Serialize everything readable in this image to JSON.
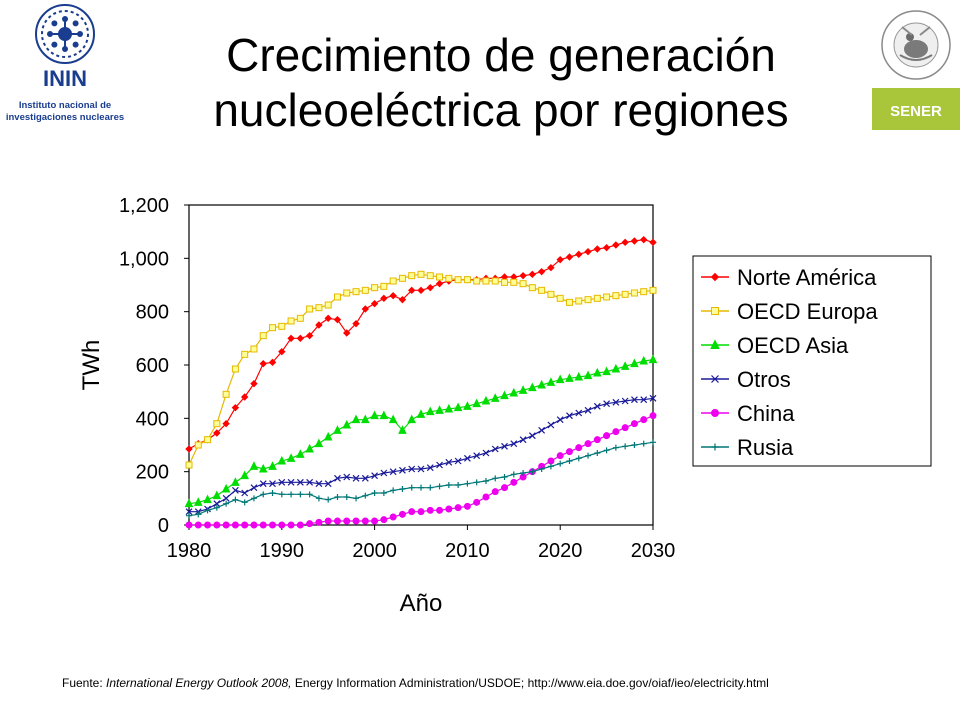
{
  "header": {
    "title_line1": "Crecimiento de generación",
    "title_line2": "nucleoeléctrica por regiones"
  },
  "logos": {
    "inin": {
      "name": "ININ",
      "subtitle_line1": "Instituto nacional de",
      "subtitle_line2": "investigaciones nucleares",
      "color": "#1a3d8f"
    },
    "sener": {
      "name": "SENER",
      "seal_text": "ESTADOS UNIDOS MEXICANOS",
      "accent_color": "#a9c63b"
    }
  },
  "footer": {
    "prefix": "Fuente: ",
    "source_title": "International Energy Outlook 2008,",
    "rest": "  Energy Information Administration/USDOE; http://www.eia.doe.gov/oiaf/ieo/electricity.html"
  },
  "chart_data": {
    "type": "line",
    "title": "",
    "xlabel": "Año",
    "ylabel": "TWh",
    "xlim": [
      1980,
      2030
    ],
    "ylim": [
      0,
      1200
    ],
    "x_ticks": [
      "1980",
      "1990",
      "2000",
      "2010",
      "2020",
      "2030"
    ],
    "y_ticks": [
      "0",
      "200",
      "400",
      "600",
      "800",
      "1,000",
      "1,200"
    ],
    "grid": false,
    "legend_position": "right",
    "x": [
      1980,
      1981,
      1982,
      1983,
      1984,
      1985,
      1986,
      1987,
      1988,
      1989,
      1990,
      1991,
      1992,
      1993,
      1994,
      1995,
      1996,
      1997,
      1998,
      1999,
      2000,
      2001,
      2002,
      2003,
      2004,
      2005,
      2006,
      2007,
      2008,
      2009,
      2010,
      2011,
      2012,
      2013,
      2014,
      2015,
      2016,
      2017,
      2018,
      2019,
      2020,
      2021,
      2022,
      2023,
      2024,
      2025,
      2026,
      2027,
      2028,
      2029,
      2030
    ],
    "series": [
      {
        "name": "Norte América",
        "color": "#ff0000",
        "marker": "diamond",
        "values": [
          285,
          305,
          320,
          345,
          380,
          440,
          480,
          530,
          605,
          610,
          650,
          700,
          700,
          710,
          750,
          775,
          770,
          720,
          755,
          810,
          830,
          850,
          860,
          845,
          880,
          880,
          890,
          905,
          915,
          920,
          920,
          920,
          925,
          925,
          930,
          930,
          935,
          940,
          950,
          965,
          995,
          1005,
          1015,
          1025,
          1035,
          1040,
          1050,
          1060,
          1065,
          1070,
          1060
        ]
      },
      {
        "name": "OECD Europa",
        "color": "#e6b800",
        "marker": "square",
        "values": [
          225,
          300,
          320,
          380,
          490,
          585,
          640,
          660,
          710,
          740,
          745,
          765,
          775,
          810,
          815,
          825,
          855,
          870,
          875,
          880,
          890,
          895,
          915,
          925,
          935,
          940,
          935,
          930,
          925,
          920,
          920,
          915,
          915,
          915,
          910,
          910,
          905,
          890,
          880,
          865,
          850,
          835,
          840,
          845,
          850,
          855,
          860,
          865,
          870,
          875,
          880
        ]
      },
      {
        "name": "OECD Asia",
        "color": "#00dd00",
        "marker": "triangle",
        "values": [
          80,
          85,
          95,
          110,
          135,
          160,
          185,
          220,
          210,
          220,
          240,
          250,
          265,
          285,
          305,
          330,
          355,
          375,
          395,
          395,
          410,
          410,
          395,
          355,
          395,
          415,
          425,
          430,
          435,
          440,
          445,
          455,
          465,
          475,
          485,
          495,
          505,
          515,
          525,
          535,
          545,
          550,
          555,
          560,
          570,
          575,
          585,
          595,
          605,
          615,
          620
        ]
      },
      {
        "name": "Otros",
        "color": "#1a1a99",
        "marker": "x",
        "values": [
          50,
          50,
          60,
          80,
          100,
          130,
          120,
          140,
          155,
          155,
          160,
          160,
          160,
          160,
          155,
          155,
          175,
          180,
          175,
          175,
          185,
          195,
          200,
          205,
          210,
          210,
          215,
          225,
          235,
          240,
          250,
          260,
          270,
          285,
          295,
          305,
          320,
          335,
          355,
          375,
          395,
          410,
          420,
          430,
          445,
          455,
          460,
          465,
          470,
          470,
          475
        ]
      },
      {
        "name": "China",
        "color": "#ee00ee",
        "marker": "circle",
        "values": [
          0,
          0,
          0,
          0,
          0,
          0,
          0,
          0,
          0,
          0,
          0,
          0,
          0,
          5,
          10,
          15,
          15,
          15,
          15,
          15,
          15,
          20,
          30,
          40,
          50,
          50,
          55,
          55,
          60,
          65,
          70,
          85,
          105,
          125,
          140,
          160,
          180,
          200,
          220,
          240,
          260,
          275,
          290,
          305,
          320,
          335,
          350,
          365,
          380,
          395,
          410
        ]
      },
      {
        "name": "Rusia",
        "color": "#007777",
        "marker": "plus",
        "values": [
          35,
          40,
          55,
          65,
          80,
          95,
          85,
          100,
          115,
          120,
          115,
          115,
          115,
          115,
          100,
          95,
          105,
          105,
          100,
          110,
          120,
          120,
          130,
          135,
          140,
          140,
          140,
          145,
          150,
          150,
          155,
          160,
          165,
          175,
          180,
          190,
          195,
          200,
          210,
          220,
          230,
          240,
          250,
          260,
          270,
          280,
          290,
          295,
          300,
          305,
          310
        ]
      }
    ]
  }
}
